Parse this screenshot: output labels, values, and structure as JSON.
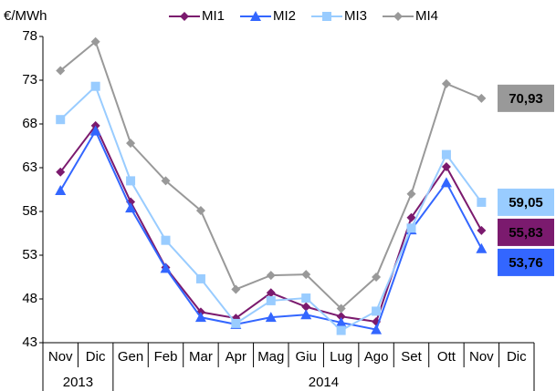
{
  "chart_data": {
    "type": "line",
    "y_unit": "€/MWh",
    "categories": [
      "Nov",
      "Dic",
      "Gen",
      "Feb",
      "Mar",
      "Apr",
      "Mag",
      "Giu",
      "Lug",
      "Ago",
      "Set",
      "Ott",
      "Nov",
      "Dic"
    ],
    "category_groups": [
      {
        "label": "2013",
        "span": 2
      },
      {
        "label": "2014",
        "span": 12
      }
    ],
    "ylim": [
      43,
      78
    ],
    "yticks": [
      43,
      48,
      53,
      58,
      63,
      68,
      73,
      78
    ],
    "grid": false,
    "legend": "top",
    "series": [
      {
        "name": "MI1",
        "color": "#7b1a6e",
        "marker": "diamond",
        "values": [
          62.5,
          67.8,
          59.1,
          51.6,
          46.5,
          45.8,
          48.7,
          47.1,
          46.0,
          45.4,
          57.3,
          63.1,
          55.83,
          null
        ],
        "value_labels": [
          null,
          null,
          null,
          null,
          null,
          null,
          null,
          null,
          null,
          null,
          null,
          null,
          "55,83",
          null
        ]
      },
      {
        "name": "MI2",
        "color": "#3366ff",
        "marker": "triangle",
        "values": [
          60.4,
          67.2,
          58.4,
          51.5,
          45.9,
          45.1,
          45.9,
          46.2,
          45.3,
          44.5,
          55.9,
          61.3,
          53.76,
          null
        ],
        "value_labels": [
          null,
          null,
          null,
          null,
          null,
          null,
          null,
          null,
          null,
          null,
          null,
          null,
          "53,76",
          null
        ]
      },
      {
        "name": "MI3",
        "color": "#99ccff",
        "marker": "square",
        "values": [
          68.5,
          72.3,
          61.5,
          54.7,
          50.3,
          45.2,
          47.8,
          48.1,
          44.4,
          46.6,
          56.1,
          64.5,
          59.05,
          null
        ],
        "value_labels": [
          null,
          null,
          null,
          null,
          null,
          null,
          null,
          null,
          null,
          null,
          null,
          null,
          "59,05",
          null
        ]
      },
      {
        "name": "MI4",
        "color": "#999999",
        "marker": "diamond",
        "values": [
          74.1,
          77.4,
          65.8,
          61.5,
          58.1,
          49.1,
          50.7,
          50.8,
          46.9,
          50.5,
          60.0,
          72.6,
          70.93,
          null
        ],
        "value_labels": [
          null,
          null,
          null,
          null,
          null,
          null,
          null,
          null,
          null,
          null,
          null,
          null,
          "70,93",
          null
        ]
      }
    ]
  }
}
